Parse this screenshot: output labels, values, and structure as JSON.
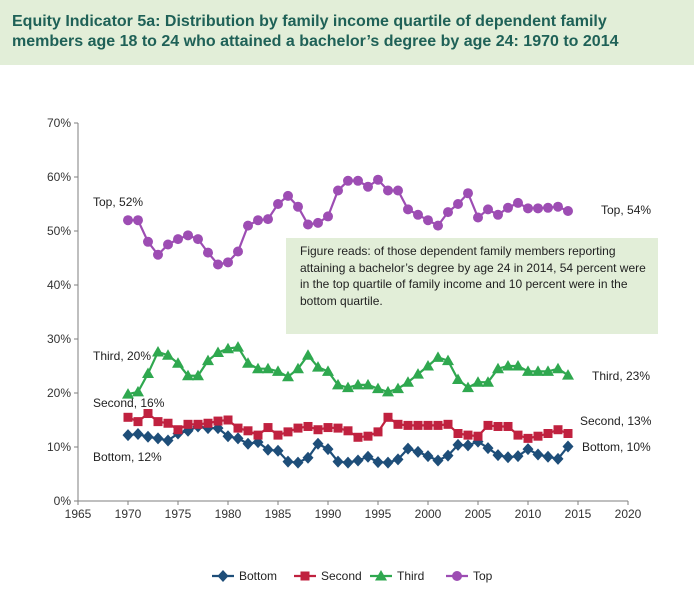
{
  "header": {
    "title_line1": "Equity Indicator 5a: Distribution by family income quartile of dependent family",
    "title_line2": "members age 18 to 24 who attained a bachelor’s degree by age 24: 1970 to 2014"
  },
  "annotation": {
    "lines": [
      "Figure reads: of those dependent family members reporting",
      "attaining a bachelor’s degree by age 24 in 2014, 54 percent were",
      "in the top quartile of family income and 10 percent were in the",
      "bottom quartile."
    ]
  },
  "chart_data": {
    "type": "line",
    "x_ticks": [
      1965,
      1970,
      1975,
      1980,
      1985,
      1990,
      1995,
      2000,
      2005,
      2010,
      2015,
      2020
    ],
    "y_ticks": [
      "0%",
      "10%",
      "20%",
      "30%",
      "40%",
      "50%",
      "60%",
      "70%"
    ],
    "xlim": [
      1965,
      2020
    ],
    "ylim": [
      0,
      70
    ],
    "grid": false,
    "legend_position": "bottom",
    "x": [
      1970,
      1971,
      1972,
      1973,
      1974,
      1975,
      1976,
      1977,
      1978,
      1979,
      1980,
      1981,
      1982,
      1983,
      1984,
      1985,
      1986,
      1987,
      1988,
      1989,
      1990,
      1991,
      1992,
      1993,
      1994,
      1995,
      1996,
      1997,
      1998,
      1999,
      2000,
      2001,
      2002,
      2003,
      2004,
      2005,
      2006,
      2007,
      2008,
      2009,
      2010,
      2011,
      2012,
      2013,
      2014
    ],
    "series": [
      {
        "name": "Bottom",
        "color": "#1e4e79",
        "marker": "diamond",
        "values": [
          12.2,
          12.4,
          11.9,
          11.6,
          11.2,
          12.5,
          13.0,
          13.8,
          13.5,
          13.5,
          12.0,
          11.6,
          10.6,
          10.9,
          9.5,
          9.3,
          7.3,
          7.1,
          8.0,
          10.6,
          9.6,
          7.3,
          7.1,
          7.5,
          8.2,
          7.2,
          7.1,
          7.7,
          9.7,
          9.1,
          8.3,
          7.5,
          8.4,
          10.4,
          10.3,
          11.0,
          9.8,
          8.5,
          8.1,
          8.3,
          9.6,
          8.6,
          8.2,
          7.8,
          10.1
        ],
        "start_label": "Bottom, 12%",
        "end_label": "Bottom, 10%"
      },
      {
        "name": "Second",
        "color": "#c0213f",
        "marker": "square",
        "values": [
          15.5,
          14.7,
          16.2,
          14.7,
          14.4,
          13.2,
          14.2,
          14.2,
          14.4,
          14.8,
          15.0,
          13.5,
          13.0,
          12.2,
          13.6,
          12.2,
          12.8,
          13.5,
          13.8,
          13.2,
          13.6,
          13.5,
          13.0,
          11.8,
          12.0,
          12.8,
          15.5,
          14.2,
          14.0,
          14.0,
          14.0,
          14.0,
          14.2,
          12.5,
          12.2,
          12.0,
          14.0,
          13.8,
          13.8,
          12.2,
          11.6,
          12.0,
          12.5,
          13.2,
          12.5
        ],
        "start_label": "Second, 16%",
        "end_label": "Second, 13%"
      },
      {
        "name": "Third",
        "color": "#2fa84f",
        "marker": "triangle",
        "values": [
          19.8,
          20.2,
          23.6,
          27.6,
          27.0,
          25.5,
          23.2,
          23.2,
          26.0,
          27.5,
          28.2,
          28.5,
          25.5,
          24.5,
          24.5,
          24.0,
          23.0,
          24.5,
          27.0,
          24.8,
          24.0,
          21.5,
          21.0,
          21.5,
          21.5,
          20.8,
          20.2,
          20.8,
          22.0,
          23.5,
          25.0,
          26.6,
          26.0,
          22.5,
          21.0,
          22.0,
          22.0,
          24.5,
          25.0,
          25.0,
          24.0,
          24.0,
          24.0,
          24.5,
          23.3
        ],
        "start_label": "Third, 20%",
        "end_label": "Third, 23%"
      },
      {
        "name": "Top",
        "color": "#9d4db3",
        "marker": "circle",
        "values": [
          52.0,
          52.0,
          48.0,
          45.6,
          47.5,
          48.5,
          49.2,
          48.5,
          46.0,
          43.8,
          44.2,
          46.2,
          51.0,
          52.0,
          52.2,
          55.0,
          56.5,
          54.5,
          51.2,
          51.5,
          52.7,
          57.5,
          59.3,
          59.3,
          58.2,
          59.5,
          57.5,
          57.5,
          54.0,
          53.0,
          52.0,
          51.0,
          53.5,
          55.0,
          57.0,
          52.5,
          54.0,
          53.0,
          54.3,
          55.2,
          54.2,
          54.2,
          54.3,
          54.5,
          53.7
        ],
        "start_label": "Top, 52%",
        "end_label": "Top, 54%"
      }
    ]
  }
}
